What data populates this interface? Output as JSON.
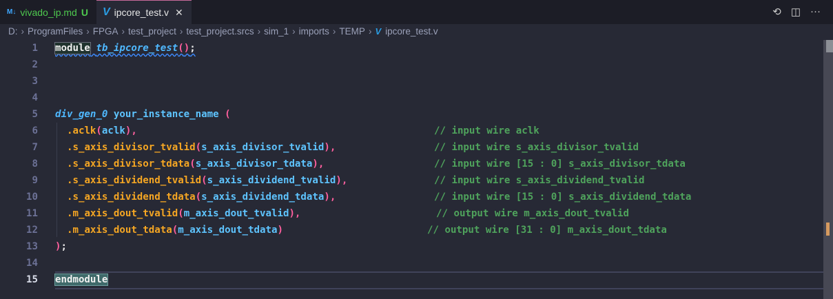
{
  "tabs": [
    {
      "label": "vivado_ip.md",
      "badge": "U",
      "icon": "markdown-icon"
    },
    {
      "label": "ipcore_test.v",
      "icon": "verilog-icon",
      "active": true
    }
  ],
  "actions": [
    "history-icon",
    "split-editor-icon",
    "more-icon"
  ],
  "breadcrumb": [
    "D:",
    "ProgramFiles",
    "FPGA",
    "test_project",
    "test_project.srcs",
    "sim_1",
    "imports",
    "TEMP",
    "ipcore_test.v"
  ],
  "colors": {
    "port": "#f5a623",
    "identifier": "#5ec4ff",
    "comment": "#4fa35c",
    "paren": "#ff5f9e",
    "background": "#272935"
  },
  "code": {
    "l1": {
      "n": "1",
      "kw": "module",
      "fn": "tb_ipcore_test",
      "p1": "(",
      "p2": ")",
      "semi": ";"
    },
    "l2": {
      "n": "2"
    },
    "l3": {
      "n": "3"
    },
    "l4": {
      "n": "4"
    },
    "l5": {
      "n": "5",
      "fn": "div_gen_0",
      "id": " your_instance_name ",
      "par": "("
    },
    "ports": [
      {
        "n": "6",
        "port": ".aclk",
        "arg": "aclk",
        "end": "),",
        "comment": "// input wire aclk"
      },
      {
        "n": "7",
        "port": ".s_axis_divisor_tvalid",
        "arg": "s_axis_divisor_tvalid",
        "end": "),",
        "comment": "// input wire s_axis_divisor_tvalid"
      },
      {
        "n": "8",
        "port": ".s_axis_divisor_tdata",
        "arg": "s_axis_divisor_tdata",
        "end": "),",
        "comment": "// input wire [15 : 0] s_axis_divisor_tdata"
      },
      {
        "n": "9",
        "port": ".s_axis_dividend_tvalid",
        "arg": "s_axis_dividend_tvalid",
        "end": "),",
        "comment": "// input wire s_axis_dividend_tvalid"
      },
      {
        "n": "10",
        "port": ".s_axis_dividend_tdata",
        "arg": "s_axis_dividend_tdata",
        "end": "),",
        "comment": "// input wire [15 : 0] s_axis_dividend_tdata"
      },
      {
        "n": "11",
        "port": ".m_axis_dout_tvalid",
        "arg": "m_axis_dout_tvalid",
        "end": "),",
        "comment": "// output wire m_axis_dout_tvalid"
      },
      {
        "n": "12",
        "port": ".m_axis_dout_tdata",
        "arg": "m_axis_dout_tdata",
        "end": ")",
        "comment": "// output wire [31 : 0] m_axis_dout_tdata"
      }
    ],
    "l13": {
      "n": "13",
      "par": ")",
      "semi": ";"
    },
    "l14": {
      "n": "14"
    },
    "l15": {
      "n": "15",
      "kw": "endmodule"
    }
  }
}
